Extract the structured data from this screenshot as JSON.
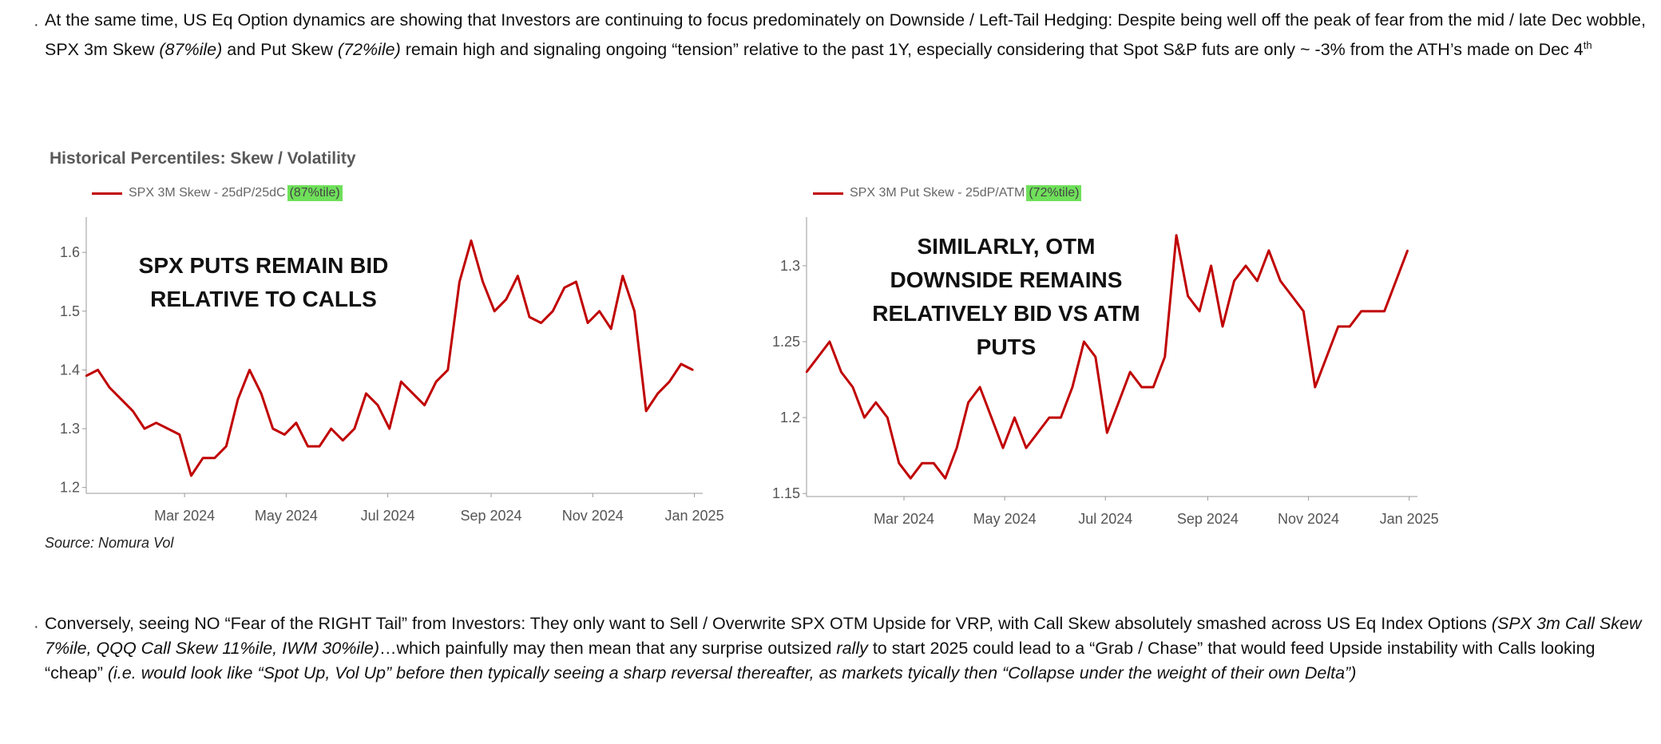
{
  "para1": {
    "t1": "At the same time, US Eq Option dynamics are showing that Investors are continuing to focus predominately on Downside / Left-Tail Hedging: Despite being well off the peak of fear from the mid / late Dec wobble, SPX 3m Skew ",
    "i1": "(87%ile)",
    "t2": " and Put Skew ",
    "i2": "(72%ile)",
    "t3": " remain high and signaling ongoing “tension” relative to the past 1Y, especially considering that Spot S&P futs are only ~ -3% from the ATH’s made on Dec 4",
    "sup": "th"
  },
  "chart_title": "Historical Percentiles: Skew / Volatility",
  "source": "Source: Nomura Vol",
  "para2": {
    "t1": "Conversely, seeing NO “Fear of the RIGHT Tail” from Investors: They only want to Sell / Overwrite SPX OTM Upside for VRP, with Call Skew absolutely smashed across US Eq Index Options ",
    "i1": "(SPX 3m Call Skew 7%ile, QQQ Call Skew 11%ile, IWM 30%ile)",
    "t2": "…which painfully may then mean that any surprise outsized ",
    "i2": "rally",
    "t3": " to start 2025 could lead to a “Grab / Chase” that would feed Upside instability with Calls looking “cheap” ",
    "i3": "(i.e. would look like “Spot Up, Vol Up” before then typically seeing a sharp reversal thereafter, as markets tyically then “Collapse under the weight of their own Delta”)"
  },
  "chart_data": [
    {
      "type": "line",
      "legend_label": "SPX 3M Skew - 25dP/25dC",
      "legend_badge": "(87%tile)",
      "annotation": [
        "SPX PUTS REMAIN BID",
        "RELATIVE TO CALLS"
      ],
      "xticks": [
        "Mar 2024",
        "May 2024",
        "Jul 2024",
        "Sep 2024",
        "Nov 2024",
        "Jan 2025"
      ],
      "yticks": [
        "1.2",
        "1.3",
        "1.4",
        "1.5",
        "1.6"
      ],
      "ylim": [
        1.19,
        1.66
      ],
      "color": "#c00000",
      "x": [
        "2024-01-02",
        "2024-01-09",
        "2024-01-16",
        "2024-01-23",
        "2024-01-30",
        "2024-02-06",
        "2024-02-13",
        "2024-02-20",
        "2024-02-27",
        "2024-03-05",
        "2024-03-12",
        "2024-03-19",
        "2024-03-26",
        "2024-04-02",
        "2024-04-09",
        "2024-04-16",
        "2024-04-23",
        "2024-04-30",
        "2024-05-07",
        "2024-05-14",
        "2024-05-21",
        "2024-05-28",
        "2024-06-04",
        "2024-06-11",
        "2024-06-18",
        "2024-06-25",
        "2024-07-02",
        "2024-07-09",
        "2024-07-16",
        "2024-07-23",
        "2024-07-30",
        "2024-08-06",
        "2024-08-13",
        "2024-08-20",
        "2024-08-27",
        "2024-09-03",
        "2024-09-10",
        "2024-09-17",
        "2024-09-24",
        "2024-10-01",
        "2024-10-08",
        "2024-10-15",
        "2024-10-22",
        "2024-10-29",
        "2024-11-05",
        "2024-11-12",
        "2024-11-19",
        "2024-11-26",
        "2024-12-03",
        "2024-12-10",
        "2024-12-17",
        "2024-12-24",
        "2024-12-31"
      ],
      "values": [
        1.39,
        1.4,
        1.37,
        1.35,
        1.33,
        1.3,
        1.31,
        1.3,
        1.29,
        1.22,
        1.25,
        1.25,
        1.27,
        1.35,
        1.4,
        1.36,
        1.3,
        1.29,
        1.31,
        1.27,
        1.27,
        1.3,
        1.28,
        1.3,
        1.36,
        1.34,
        1.3,
        1.38,
        1.36,
        1.34,
        1.38,
        1.4,
        1.55,
        1.62,
        1.55,
        1.5,
        1.52,
        1.56,
        1.49,
        1.48,
        1.5,
        1.54,
        1.55,
        1.48,
        1.5,
        1.47,
        1.56,
        1.5,
        1.33,
        1.36,
        1.38,
        1.41,
        1.4
      ]
    },
    {
      "type": "line",
      "legend_label": "SPX 3M Put Skew - 25dP/ATM",
      "legend_badge": "(72%tile)",
      "annotation": [
        "SIMILARLY, OTM",
        "DOWNSIDE REMAINS",
        "RELATIVELY BID VS ATM",
        "PUTS"
      ],
      "xticks": [
        "Mar 2024",
        "May 2024",
        "Jul 2024",
        "Sep 2024",
        "Nov 2024",
        "Jan 2025"
      ],
      "yticks": [
        "1.15",
        "1.2",
        "1.25",
        "1.3"
      ],
      "ylim": [
        1.148,
        1.332
      ],
      "color": "#c00000",
      "x": [
        "2024-01-02",
        "2024-01-09",
        "2024-01-16",
        "2024-01-23",
        "2024-01-30",
        "2024-02-06",
        "2024-02-13",
        "2024-02-20",
        "2024-02-27",
        "2024-03-05",
        "2024-03-12",
        "2024-03-19",
        "2024-03-26",
        "2024-04-02",
        "2024-04-09",
        "2024-04-16",
        "2024-04-23",
        "2024-04-30",
        "2024-05-07",
        "2024-05-14",
        "2024-05-21",
        "2024-05-28",
        "2024-06-04",
        "2024-06-11",
        "2024-06-18",
        "2024-06-25",
        "2024-07-02",
        "2024-07-09",
        "2024-07-16",
        "2024-07-23",
        "2024-07-30",
        "2024-08-06",
        "2024-08-13",
        "2024-08-20",
        "2024-08-27",
        "2024-09-03",
        "2024-09-10",
        "2024-09-17",
        "2024-09-24",
        "2024-10-01",
        "2024-10-08",
        "2024-10-15",
        "2024-10-22",
        "2024-10-29",
        "2024-11-05",
        "2024-11-12",
        "2024-11-19",
        "2024-11-26",
        "2024-12-03",
        "2024-12-10",
        "2024-12-17",
        "2024-12-24",
        "2024-12-31"
      ],
      "values": [
        1.23,
        1.24,
        1.25,
        1.23,
        1.22,
        1.2,
        1.21,
        1.2,
        1.17,
        1.16,
        1.17,
        1.17,
        1.16,
        1.18,
        1.21,
        1.22,
        1.2,
        1.18,
        1.2,
        1.18,
        1.19,
        1.2,
        1.2,
        1.22,
        1.25,
        1.24,
        1.19,
        1.21,
        1.23,
        1.22,
        1.22,
        1.24,
        1.32,
        1.28,
        1.27,
        1.3,
        1.26,
        1.29,
        1.3,
        1.29,
        1.31,
        1.29,
        1.28,
        1.27,
        1.22,
        1.24,
        1.26,
        1.26,
        1.27,
        1.27,
        1.27,
        1.29,
        1.31
      ]
    }
  ]
}
